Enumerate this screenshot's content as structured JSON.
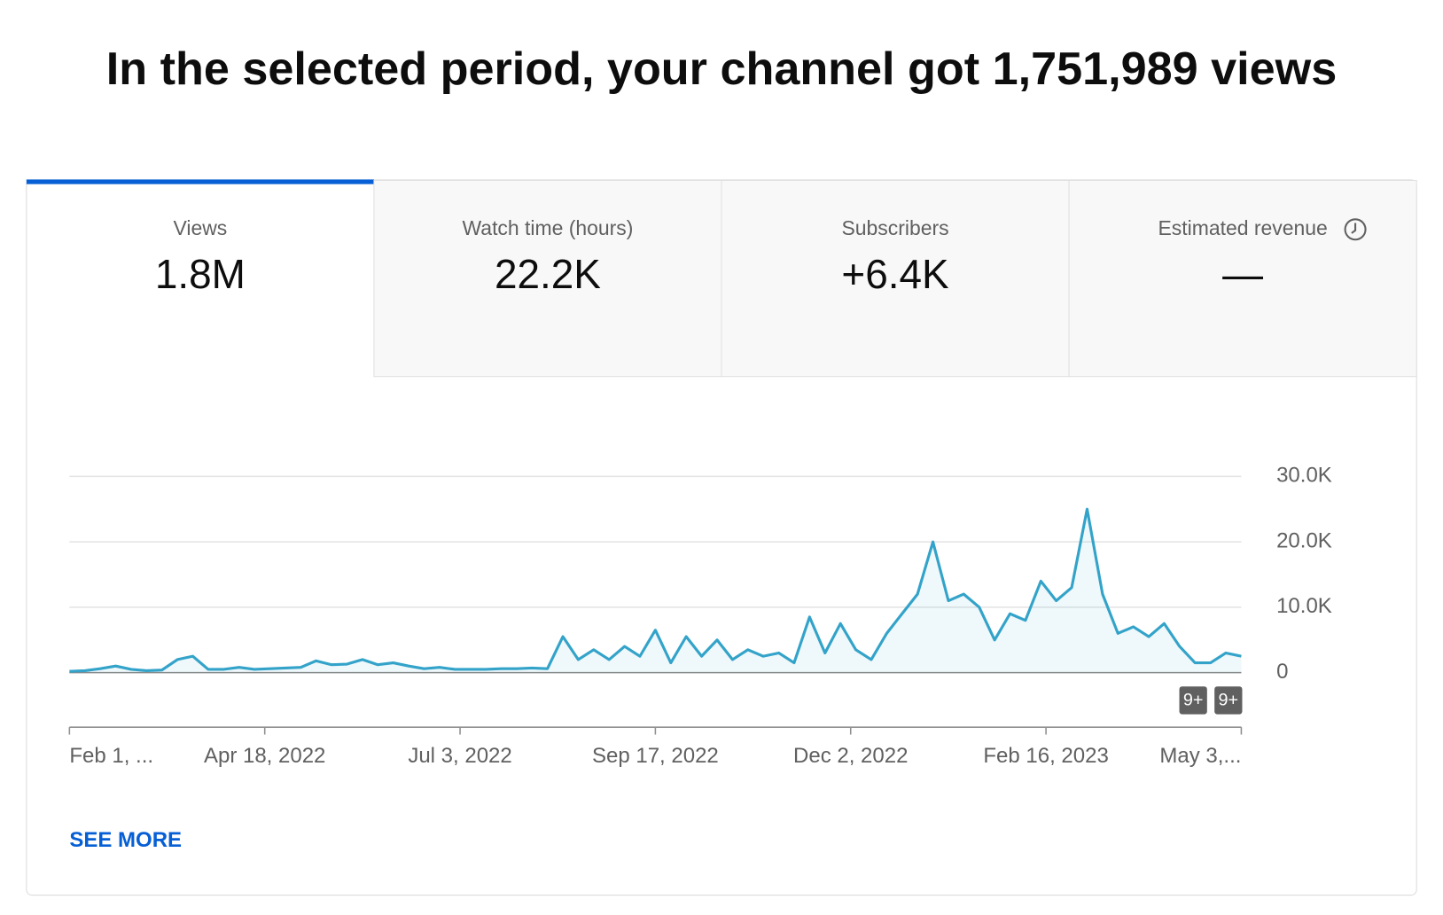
{
  "header": {
    "title": "In the selected period, your channel got 1,751,989 views"
  },
  "tabs": [
    {
      "label": "Views",
      "value": "1.8M"
    },
    {
      "label": "Watch time (hours)",
      "value": "22.2K"
    },
    {
      "label": "Subscribers",
      "value": "+6.4K"
    },
    {
      "label": "Estimated revenue",
      "value": "—"
    }
  ],
  "chart_data": {
    "type": "line",
    "x": [
      "2022-02-01",
      "2022-02-07",
      "2022-02-13",
      "2022-02-19",
      "2022-02-25",
      "2022-03-03",
      "2022-03-09",
      "2022-03-15",
      "2022-03-21",
      "2022-03-27",
      "2022-04-02",
      "2022-04-08",
      "2022-04-14",
      "2022-04-20",
      "2022-04-26",
      "2022-05-02",
      "2022-05-08",
      "2022-05-14",
      "2022-05-20",
      "2022-05-26",
      "2022-06-01",
      "2022-06-07",
      "2022-06-13",
      "2022-06-19",
      "2022-06-25",
      "2022-07-01",
      "2022-07-07",
      "2022-07-13",
      "2022-07-19",
      "2022-07-25",
      "2022-07-31",
      "2022-08-06",
      "2022-08-12",
      "2022-08-18",
      "2022-08-24",
      "2022-08-30",
      "2022-09-05",
      "2022-09-11",
      "2022-09-17",
      "2022-09-23",
      "2022-09-29",
      "2022-10-05",
      "2022-10-11",
      "2022-10-17",
      "2022-10-23",
      "2022-10-29",
      "2022-11-04",
      "2022-11-10",
      "2022-11-16",
      "2022-11-22",
      "2022-11-28",
      "2022-12-04",
      "2022-12-10",
      "2022-12-16",
      "2022-12-22",
      "2022-12-28",
      "2023-01-03",
      "2023-01-09",
      "2023-01-15",
      "2023-01-21",
      "2023-01-27",
      "2023-02-02",
      "2023-02-08",
      "2023-02-14",
      "2023-02-20",
      "2023-02-26",
      "2023-03-04",
      "2023-03-10",
      "2023-03-16",
      "2023-03-22",
      "2023-03-28",
      "2023-04-03",
      "2023-04-09",
      "2023-04-15",
      "2023-04-21",
      "2023-04-27",
      "2023-05-03"
    ],
    "series": [
      {
        "name": "Views",
        "color": "#33a3c9",
        "values": [
          200,
          300,
          600,
          1000,
          500,
          300,
          400,
          2000,
          2500,
          500,
          500,
          800,
          500,
          600,
          700,
          800,
          1800,
          1200,
          1300,
          2000,
          1200,
          1500,
          1000,
          600,
          800,
          500,
          500,
          500,
          600,
          600,
          700,
          600,
          5500,
          2000,
          3500,
          2000,
          4000,
          2500,
          6500,
          1500,
          5500,
          2500,
          5000,
          2000,
          3500,
          2500,
          3000,
          1500,
          8500,
          3000,
          7500,
          3500,
          2000,
          6000,
          9000,
          12000,
          20000,
          11000,
          12000,
          10000,
          5000,
          9000,
          8000,
          14000,
          11000,
          13000,
          25000,
          12000,
          6000,
          7000,
          5500,
          7500,
          4000,
          1500,
          1500,
          3000,
          2500
        ]
      }
    ],
    "xlim": [
      "2022-02-01",
      "2023-05-03"
    ],
    "xticks": [
      {
        "value": "2022-02-01",
        "label": "Feb 1, ..."
      },
      {
        "value": "2022-04-18",
        "label": "Apr 18, 2022"
      },
      {
        "value": "2022-07-03",
        "label": "Jul 3, 2022"
      },
      {
        "value": "2022-09-17",
        "label": "Sep 17, 2022"
      },
      {
        "value": "2022-12-02",
        "label": "Dec 2, 2022"
      },
      {
        "value": "2023-02-16",
        "label": "Feb 16, 2023"
      },
      {
        "value": "2023-05-03",
        "label": "May 3,..."
      }
    ],
    "ylim": [
      0,
      30000
    ],
    "yticks": [
      0,
      {
        "value": 10000,
        "label": "10.0K"
      },
      {
        "value": 20000,
        "label": "20.0K"
      },
      {
        "value": 30000,
        "label": "30.0K"
      }
    ],
    "grid": true,
    "annotations": [
      "9+",
      "9+"
    ]
  },
  "link": "SEE MORE"
}
